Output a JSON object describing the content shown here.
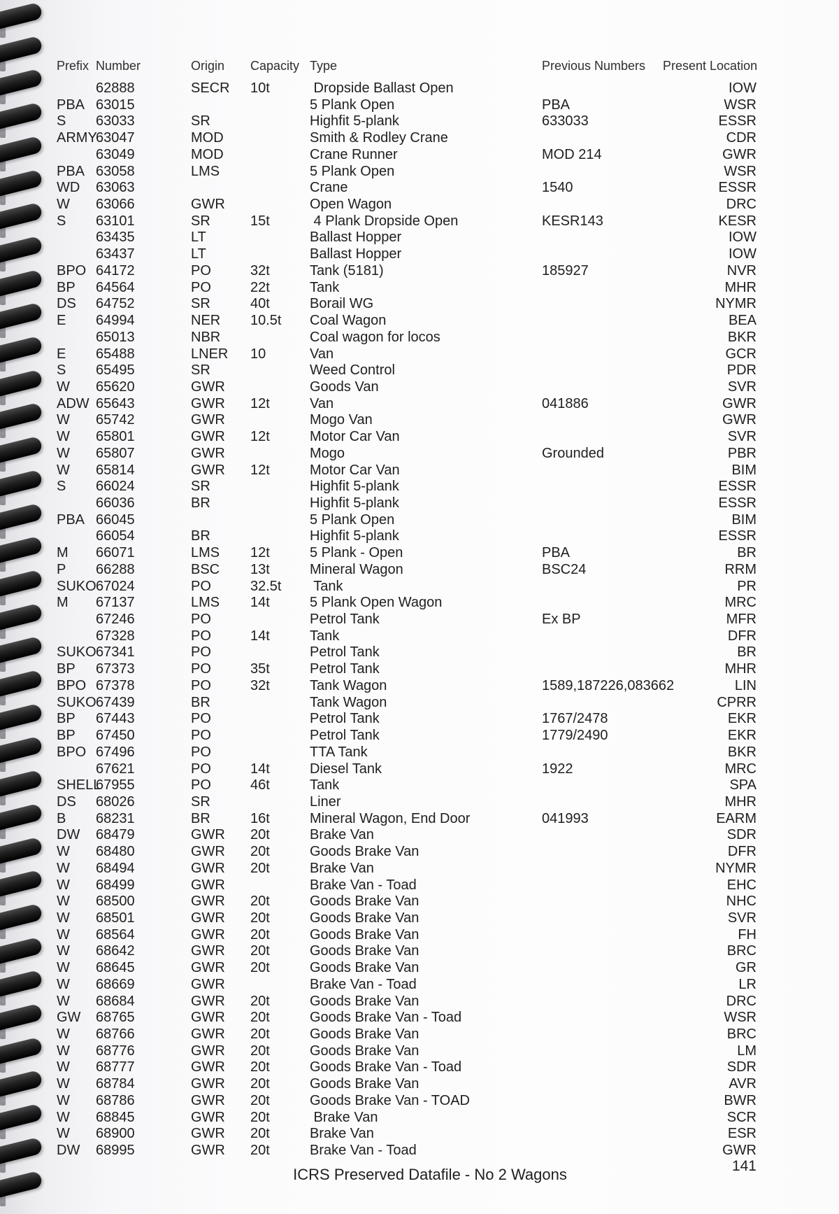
{
  "header": {
    "prefix": "Prefix",
    "number": "Number",
    "origin": "Origin",
    "capacity": "Capacity",
    "type": "Type",
    "previous": "Previous Numbers",
    "location": "Present Location"
  },
  "rows": [
    {
      "prefix": "",
      "number": "62888",
      "origin": "SECR",
      "capacity": "10t",
      "type": " Dropside Ballast Open",
      "previous": "",
      "location": "IOW"
    },
    {
      "prefix": "PBA",
      "number": "63015",
      "origin": "",
      "capacity": "",
      "type": "5 Plank Open",
      "previous": "PBA",
      "location": "WSR"
    },
    {
      "prefix": "S",
      "number": "63033",
      "origin": "SR",
      "capacity": "",
      "type": "Highfit 5-plank",
      "previous": "633033",
      "location": "ESSR"
    },
    {
      "prefix": "ARMY",
      "number": "63047",
      "origin": "MOD",
      "capacity": "",
      "type": "Smith & Rodley Crane",
      "previous": "",
      "location": "CDR"
    },
    {
      "prefix": "",
      "number": "63049",
      "origin": "MOD",
      "capacity": "",
      "type": "Crane Runner",
      "previous": "MOD 214",
      "location": "GWR"
    },
    {
      "prefix": "PBA",
      "number": "63058",
      "origin": "LMS",
      "capacity": "",
      "type": "5 Plank Open",
      "previous": "",
      "location": "WSR"
    },
    {
      "prefix": "WD",
      "number": "63063",
      "origin": "",
      "capacity": "",
      "type": "Crane",
      "previous": "1540",
      "location": "ESSR"
    },
    {
      "prefix": "W",
      "number": "63066",
      "origin": "GWR",
      "capacity": "",
      "type": "Open Wagon",
      "previous": "",
      "location": "DRC"
    },
    {
      "prefix": "S",
      "number": "63101",
      "origin": "SR",
      "capacity": "15t",
      "type": " 4 Plank Dropside Open",
      "previous": "KESR143",
      "location": "KESR"
    },
    {
      "prefix": "",
      "number": "63435",
      "origin": "LT",
      "capacity": "",
      "type": "Ballast Hopper",
      "previous": "",
      "location": "IOW"
    },
    {
      "prefix": "",
      "number": "63437",
      "origin": "LT",
      "capacity": "",
      "type": "Ballast Hopper",
      "previous": "",
      "location": "IOW"
    },
    {
      "prefix": "BPO",
      "number": "64172",
      "origin": "PO",
      "capacity": "32t",
      "type": "Tank (5181)",
      "previous": "185927",
      "location": "NVR"
    },
    {
      "prefix": "BP",
      "number": "64564",
      "origin": "PO",
      "capacity": "22t",
      "type": "Tank",
      "previous": "",
      "location": "MHR"
    },
    {
      "prefix": "DS",
      "number": "64752",
      "origin": "SR",
      "capacity": "40t",
      "type": "Borail WG",
      "previous": "",
      "location": "NYMR"
    },
    {
      "prefix": "E",
      "number": "64994",
      "origin": "NER",
      "capacity": "10.5t",
      "type": "Coal Wagon",
      "previous": "",
      "location": "BEA"
    },
    {
      "prefix": "",
      "number": "65013",
      "origin": "NBR",
      "capacity": "",
      "type": "Coal wagon for locos",
      "previous": "",
      "location": "BKR"
    },
    {
      "prefix": "E",
      "number": "65488",
      "origin": "LNER",
      "capacity": "10",
      "type": "Van",
      "previous": "",
      "location": "GCR"
    },
    {
      "prefix": "S",
      "number": "65495",
      "origin": "SR",
      "capacity": "",
      "type": "Weed Control",
      "previous": "",
      "location": "PDR"
    },
    {
      "prefix": "W",
      "number": "65620",
      "origin": "GWR",
      "capacity": "",
      "type": "Goods Van",
      "previous": "",
      "location": "SVR"
    },
    {
      "prefix": "ADW",
      "number": "65643",
      "origin": "GWR",
      "capacity": "12t",
      "type": "Van",
      "previous": "041886",
      "location": "GWR"
    },
    {
      "prefix": "W",
      "number": "65742",
      "origin": "GWR",
      "capacity": "",
      "type": "Mogo Van",
      "previous": "",
      "location": "GWR"
    },
    {
      "prefix": "W",
      "number": "65801",
      "origin": "GWR",
      "capacity": "12t",
      "type": "Motor Car Van",
      "previous": "",
      "location": "SVR"
    },
    {
      "prefix": "W",
      "number": "65807",
      "origin": "GWR",
      "capacity": "",
      "type": "Mogo",
      "previous": "Grounded",
      "location": "PBR"
    },
    {
      "prefix": "W",
      "number": "65814",
      "origin": "GWR",
      "capacity": "12t",
      "type": "Motor Car Van",
      "previous": "",
      "location": "BIM"
    },
    {
      "prefix": "S",
      "number": "66024",
      "origin": "SR",
      "capacity": "",
      "type": "Highfit 5-plank",
      "previous": "",
      "location": "ESSR"
    },
    {
      "prefix": "",
      "number": "66036",
      "origin": "BR",
      "capacity": "",
      "type": "Highfit 5-plank",
      "previous": "",
      "location": "ESSR"
    },
    {
      "prefix": "PBA",
      "number": "66045",
      "origin": "",
      "capacity": "",
      "type": "5 Plank Open",
      "previous": "",
      "location": "BIM"
    },
    {
      "prefix": "",
      "number": "66054",
      "origin": "BR",
      "capacity": "",
      "type": "Highfit 5-plank",
      "previous": "",
      "location": "ESSR"
    },
    {
      "prefix": "M",
      "number": "66071",
      "origin": "LMS",
      "capacity": "12t",
      "type": "5 Plank - Open",
      "previous": "PBA",
      "location": "BR"
    },
    {
      "prefix": "P",
      "number": "66288",
      "origin": "BSC",
      "capacity": "13t",
      "type": "Mineral Wagon",
      "previous": "BSC24",
      "location": "RRM"
    },
    {
      "prefix": "SUKO",
      "number": "67024",
      "origin": "PO",
      "capacity": "32.5t",
      "type": " Tank",
      "previous": "",
      "location": "PR"
    },
    {
      "prefix": "M",
      "number": "67137",
      "origin": "LMS",
      "capacity": "14t",
      "type": "5 Plank Open Wagon",
      "previous": "",
      "location": "MRC"
    },
    {
      "prefix": "",
      "number": "67246",
      "origin": "PO",
      "capacity": "",
      "type": "Petrol Tank",
      "previous": "Ex BP",
      "location": "MFR"
    },
    {
      "prefix": "",
      "number": "67328",
      "origin": "PO",
      "capacity": "14t",
      "type": "Tank",
      "previous": "",
      "location": "DFR"
    },
    {
      "prefix": "SUKO",
      "number": "67341",
      "origin": "PO",
      "capacity": "",
      "type": "Petrol Tank",
      "previous": "",
      "location": "BR"
    },
    {
      "prefix": "BP",
      "number": "67373",
      "origin": "PO",
      "capacity": "35t",
      "type": "Petrol Tank",
      "previous": "",
      "location": "MHR"
    },
    {
      "prefix": "BPO",
      "number": "67378",
      "origin": "PO",
      "capacity": "32t",
      "type": "Tank Wagon",
      "previous": "1589,187226,083662",
      "location": "LIN"
    },
    {
      "prefix": "SUKO",
      "number": "67439",
      "origin": "BR",
      "capacity": "",
      "type": "Tank Wagon",
      "previous": "",
      "location": "CPRR"
    },
    {
      "prefix": "BP",
      "number": "67443",
      "origin": "PO",
      "capacity": "",
      "type": "Petrol Tank",
      "previous": "1767/2478",
      "location": "EKR"
    },
    {
      "prefix": "BP",
      "number": "67450",
      "origin": "PO",
      "capacity": "",
      "type": "Petrol Tank",
      "previous": "1779/2490",
      "location": "EKR"
    },
    {
      "prefix": "BPO",
      "number": "67496",
      "origin": "PO",
      "capacity": "",
      "type": "TTA Tank",
      "previous": "",
      "location": "BKR"
    },
    {
      "prefix": "",
      "number": "67621",
      "origin": "PO",
      "capacity": "14t",
      "type": "Diesel Tank",
      "previous": "1922",
      "location": "MRC"
    },
    {
      "prefix": "SHELL",
      "number": "67955",
      "origin": "PO",
      "capacity": "46t",
      "type": "Tank",
      "previous": "",
      "location": "SPA"
    },
    {
      "prefix": "DS",
      "number": "68026",
      "origin": "SR",
      "capacity": "",
      "type": "Liner",
      "previous": "",
      "location": "MHR"
    },
    {
      "prefix": "B",
      "number": "68231",
      "origin": "BR",
      "capacity": "16t",
      "type": "Mineral Wagon, End Door",
      "previous": "041993",
      "location": "EARM"
    },
    {
      "prefix": "DW",
      "number": "68479",
      "origin": "GWR",
      "capacity": "20t",
      "type": "Brake Van",
      "previous": "",
      "location": "SDR"
    },
    {
      "prefix": "W",
      "number": "68480",
      "origin": "GWR",
      "capacity": "20t",
      "type": "Goods Brake Van",
      "previous": "",
      "location": "DFR"
    },
    {
      "prefix": "W",
      "number": "68494",
      "origin": "GWR",
      "capacity": "20t",
      "type": "Brake Van",
      "previous": "",
      "location": "NYMR"
    },
    {
      "prefix": "W",
      "number": "68499",
      "origin": "GWR",
      "capacity": "",
      "type": "Brake Van - Toad",
      "previous": "",
      "location": "EHC"
    },
    {
      "prefix": "W",
      "number": "68500",
      "origin": "GWR",
      "capacity": "20t",
      "type": "Goods Brake Van",
      "previous": "",
      "location": "NHC"
    },
    {
      "prefix": "W",
      "number": "68501",
      "origin": "GWR",
      "capacity": "20t",
      "type": "Goods Brake Van",
      "previous": "",
      "location": "SVR"
    },
    {
      "prefix": "W",
      "number": "68564",
      "origin": "GWR",
      "capacity": "20t",
      "type": "Goods Brake Van",
      "previous": "",
      "location": "FH"
    },
    {
      "prefix": "W",
      "number": "68642",
      "origin": "GWR",
      "capacity": "20t",
      "type": "Goods Brake Van",
      "previous": "",
      "location": "BRC"
    },
    {
      "prefix": "W",
      "number": "68645",
      "origin": "GWR",
      "capacity": "20t",
      "type": "Goods Brake Van",
      "previous": "",
      "location": "GR"
    },
    {
      "prefix": "W",
      "number": "68669",
      "origin": "GWR",
      "capacity": "",
      "type": "Brake Van - Toad",
      "previous": "",
      "location": "LR"
    },
    {
      "prefix": "W",
      "number": "68684",
      "origin": "GWR",
      "capacity": "20t",
      "type": "Goods Brake Van",
      "previous": "",
      "location": "DRC"
    },
    {
      "prefix": "GW",
      "number": "68765",
      "origin": "GWR",
      "capacity": "20t",
      "type": "Goods Brake Van - Toad",
      "previous": "",
      "location": "WSR"
    },
    {
      "prefix": "W",
      "number": "68766",
      "origin": "GWR",
      "capacity": "20t",
      "type": "Goods Brake Van",
      "previous": "",
      "location": "BRC"
    },
    {
      "prefix": "W",
      "number": "68776",
      "origin": "GWR",
      "capacity": "20t",
      "type": "Goods Brake Van",
      "previous": "",
      "location": "LM"
    },
    {
      "prefix": "W",
      "number": "68777",
      "origin": "GWR",
      "capacity": "20t",
      "type": "Goods Brake Van - Toad",
      "previous": "",
      "location": "SDR"
    },
    {
      "prefix": "W",
      "number": "68784",
      "origin": "GWR",
      "capacity": "20t",
      "type": "Goods Brake Van",
      "previous": "",
      "location": "AVR"
    },
    {
      "prefix": "W",
      "number": "68786",
      "origin": "GWR",
      "capacity": "20t",
      "type": "Goods Brake Van - TOAD",
      "previous": "",
      "location": "BWR"
    },
    {
      "prefix": "W",
      "number": "68845",
      "origin": "GWR",
      "capacity": "20t",
      "type": " Brake Van",
      "previous": "",
      "location": "SCR"
    },
    {
      "prefix": "W",
      "number": "68900",
      "origin": "GWR",
      "capacity": "20t",
      "type": "Brake Van",
      "previous": "",
      "location": "ESR"
    },
    {
      "prefix": "DW",
      "number": "68995",
      "origin": "GWR",
      "capacity": "20t",
      "type": "Brake Van - Toad",
      "previous": "",
      "location": "GWR"
    }
  ],
  "footer": {
    "title": "ICRS Preserved Datafile - No 2 Wagons",
    "page_number": "141"
  }
}
